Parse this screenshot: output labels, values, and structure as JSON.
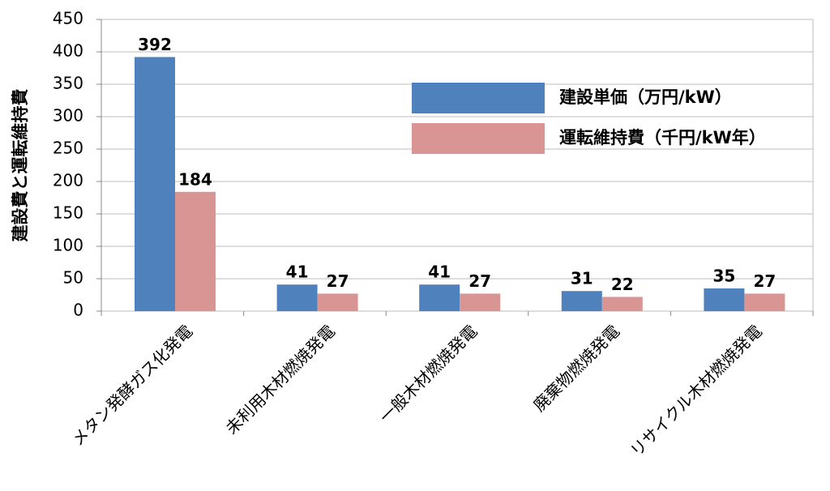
{
  "chart_data": {
    "type": "bar",
    "y_label": "建設費と運転維持費",
    "categories": [
      "メタン発酵ガス化発電",
      "未利用木材燃焼発電",
      "一般木材燃焼発電",
      "廃棄物燃焼発電",
      "リサイクル木材燃焼発電"
    ],
    "series": [
      {
        "name": "建設単価（万円/kW）",
        "color": "#4f81bd",
        "values": [
          392,
          41,
          41,
          31,
          35
        ]
      },
      {
        "name": "運転維持費（千円/kW年）",
        "color": "#d99594",
        "values": [
          184,
          27,
          27,
          22,
          27
        ]
      }
    ],
    "ylim": [
      0,
      450
    ],
    "yticks": [
      0,
      50,
      100,
      150,
      200,
      250,
      300,
      350,
      400,
      450
    ],
    "grid": true,
    "legend": "upper right"
  }
}
